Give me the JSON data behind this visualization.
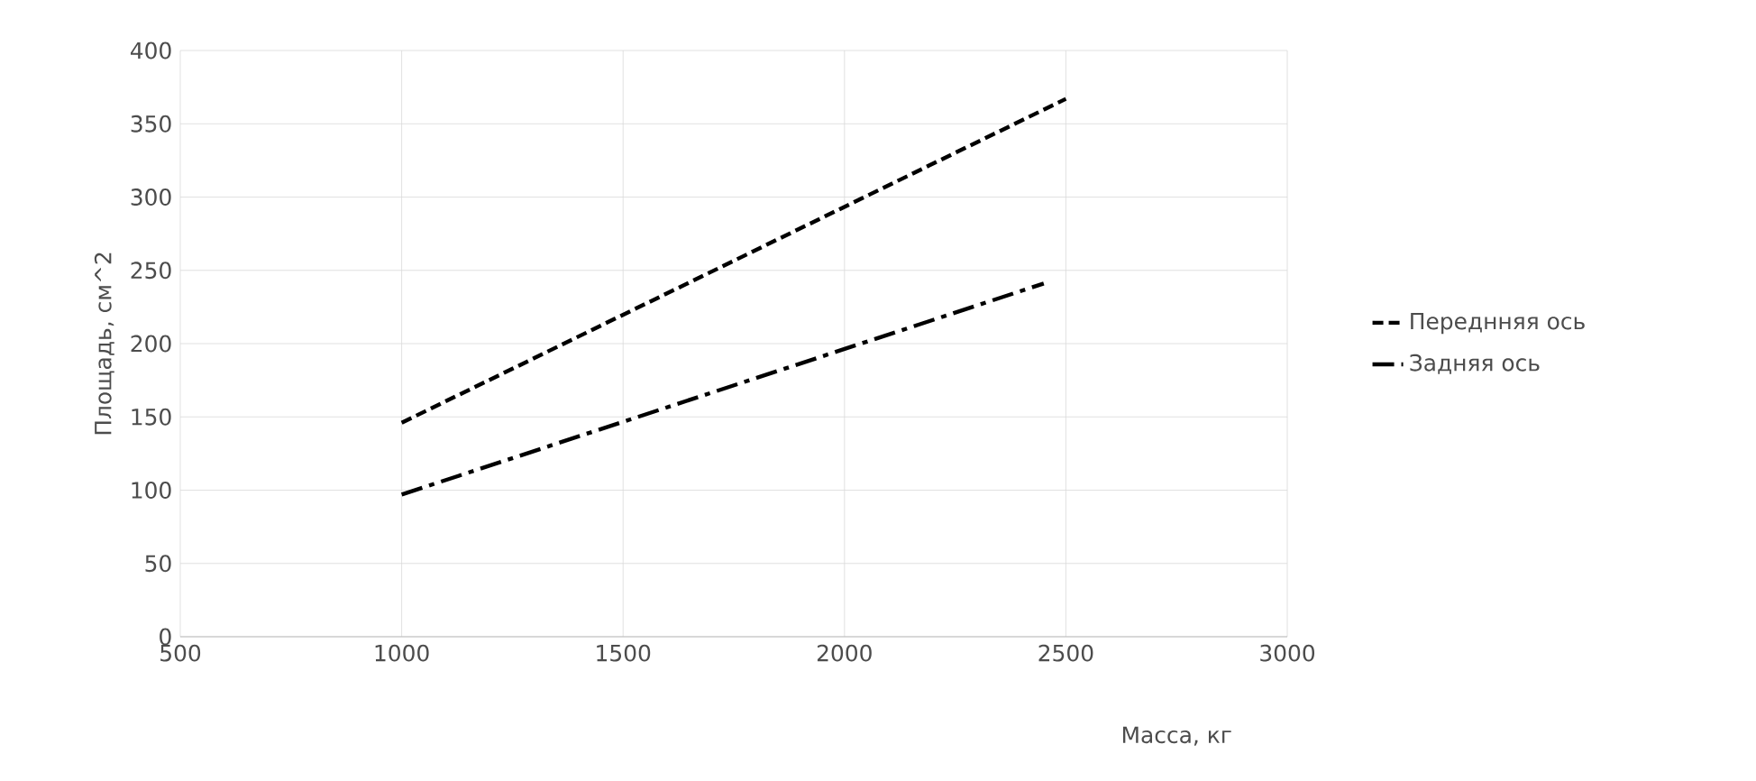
{
  "chart_data": {
    "type": "line",
    "xlabel": "Масса, кг",
    "ylabel": "Площадь, см^2",
    "series": [
      {
        "name": "Переднняя ось",
        "color": "#000000",
        "line_style": "dashed",
        "x": [
          1000,
          2500
        ],
        "values": [
          146,
          367
        ]
      },
      {
        "name": "Задняя ось",
        "color": "#000000",
        "line_style": "dashdot",
        "x": [
          1000,
          2450
        ],
        "values": [
          97,
          241
        ]
      }
    ],
    "xlim": [
      500,
      3000
    ],
    "xticks": [
      500,
      1000,
      1500,
      2000,
      2500,
      3000
    ],
    "ylim": [
      0,
      400
    ],
    "yticks": [
      0,
      50,
      100,
      150,
      200,
      250,
      300,
      350,
      400
    ],
    "grid": true,
    "legend": "right",
    "marker": "none"
  }
}
